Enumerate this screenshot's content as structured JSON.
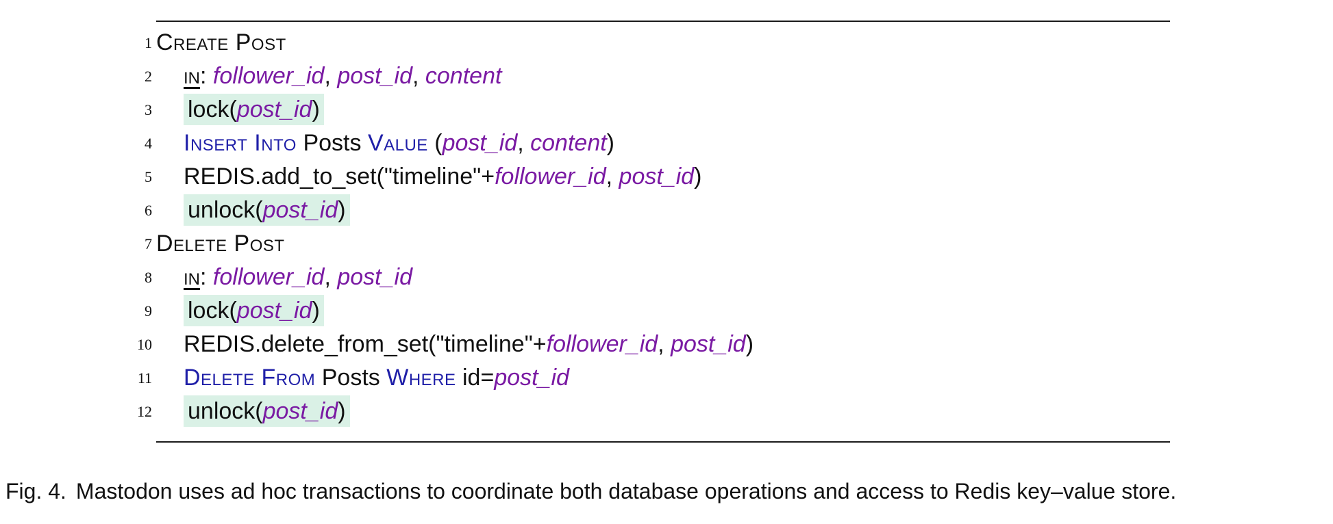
{
  "procedures": [
    {
      "name": "Create Post",
      "line": "1",
      "inputs_line": "2",
      "inputs": [
        "follower_id",
        "post_id",
        "content"
      ],
      "statements": [
        {
          "line": "3",
          "kind": "lock",
          "fn": "lock",
          "arg": "post_id"
        },
        {
          "line": "4",
          "kind": "sql-insert",
          "kw1": "Insert Into",
          "table": "Posts",
          "kw2": "Value",
          "args": [
            "post_id",
            "content"
          ]
        },
        {
          "line": "5",
          "kind": "redis",
          "prefix": "REDIS.add_to_set(\"timeline\"+",
          "arg1": "follower_id",
          "arg2": "post_id"
        },
        {
          "line": "6",
          "kind": "lock",
          "fn": "unlock",
          "arg": "post_id"
        }
      ]
    },
    {
      "name": "Delete Post",
      "line": "7",
      "inputs_line": "8",
      "inputs": [
        "follower_id",
        "post_id"
      ],
      "statements": [
        {
          "line": "9",
          "kind": "lock",
          "fn": "lock",
          "arg": "post_id"
        },
        {
          "line": "10",
          "kind": "redis",
          "prefix": "REDIS.delete_from_set(\"timeline\"+",
          "arg1": "follower_id",
          "arg2": "post_id"
        },
        {
          "line": "11",
          "kind": "sql-delete",
          "kw1": "Delete From",
          "table": "Posts",
          "kw2": "Where",
          "cond_lhs": "id=",
          "arg": "post_id"
        },
        {
          "line": "12",
          "kind": "lock",
          "fn": "unlock",
          "arg": "post_id"
        }
      ]
    }
  ],
  "in_keyword": "in",
  "caption": {
    "label": "Fig. 4.",
    "text": "Mastodon uses ad hoc transactions to coordinate both database operations and access to Redis key–value store."
  },
  "colors": {
    "keyword": "#1f1fa8",
    "variable": "#7a1aa3",
    "lock_highlight": "#daf1e6"
  }
}
